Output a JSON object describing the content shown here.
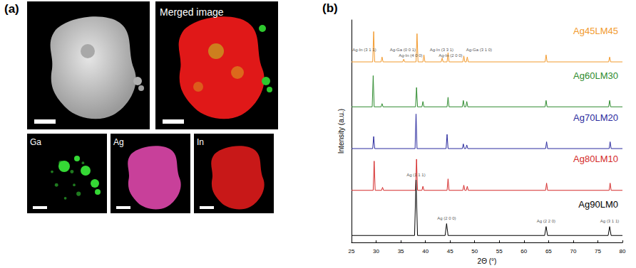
{
  "figure": {
    "panel_a": {
      "label": "(a)",
      "merged_title": "Merged image",
      "maps": [
        "Ga",
        "Ag",
        "In"
      ]
    },
    "panel_b": {
      "label": "(b)"
    }
  },
  "chart_data": {
    "type": "line",
    "x_label": "2Θ (°)",
    "y_label": "Intensity (a.u.)",
    "xlim": [
      25,
      80
    ],
    "xticks": [
      25,
      30,
      35,
      40,
      45,
      50,
      55,
      60,
      65,
      70,
      75,
      80
    ],
    "ylim": [
      0,
      105
    ],
    "tick_labels": "x",
    "grid": false,
    "series": [
      {
        "name": "Ag45LM45",
        "color": "#f29a2e",
        "x": [
          25,
          29.3,
          29.5,
          29.7,
          31.0,
          31.2,
          31.4,
          35.4,
          35.6,
          35.8,
          38.1,
          38.3,
          38.5,
          39.5,
          39.7,
          39.9,
          43.2,
          43.4,
          43.6,
          44.4,
          44.6,
          44.8,
          47.6,
          47.8,
          48.0,
          48.3,
          48.5,
          48.7,
          64.3,
          64.5,
          64.7,
          77.2,
          77.4,
          77.6,
          80
        ],
        "values": [
          85.2,
          85.2,
          99.5,
          85.2,
          85.2,
          87.5,
          85.2,
          85.2,
          86.5,
          85.2,
          85.2,
          98.5,
          85.2,
          85.2,
          88.5,
          85.2,
          85.2,
          87,
          85.2,
          85.2,
          89.5,
          85.2,
          85.2,
          88,
          85.2,
          85.2,
          87.5,
          85.2,
          85.2,
          88.5,
          85.2,
          85.2,
          87.5,
          85.2,
          85.2
        ]
      },
      {
        "name": "Ag60LM30",
        "color": "#2e8b2e",
        "x": [
          25,
          29.2,
          29.4,
          29.6,
          31.0,
          31.2,
          31.4,
          38.0,
          38.2,
          38.4,
          39.3,
          39.5,
          39.7,
          44.4,
          44.6,
          44.8,
          47.5,
          47.7,
          47.9,
          48.2,
          48.4,
          48.6,
          64.3,
          64.5,
          64.7,
          77.2,
          77.4,
          77.6,
          80
        ],
        "values": [
          64,
          64,
          78.7,
          64,
          64,
          65.5,
          64,
          64,
          73.1,
          64,
          64,
          66.5,
          64,
          64,
          68.5,
          64,
          64,
          67,
          64,
          64,
          66.5,
          64,
          64,
          67,
          64,
          64,
          67,
          64,
          64
        ]
      },
      {
        "name": "Ag70LM20",
        "color": "#2b2b9e",
        "x": [
          25,
          29.3,
          29.5,
          29.7,
          37.9,
          38.1,
          38.3,
          44.2,
          44.4,
          44.6,
          47.5,
          47.7,
          47.9,
          48.2,
          48.4,
          48.6,
          64.4,
          64.6,
          64.8,
          77.3,
          77.5,
          77.7,
          80
        ],
        "values": [
          44.3,
          44.3,
          50,
          44.3,
          44.3,
          60.6,
          44.3,
          44.3,
          51,
          44.3,
          44.3,
          46.5,
          44.3,
          44.3,
          46,
          44.3,
          44.3,
          47.5,
          44.3,
          44.3,
          47.5,
          44.3,
          44.3
        ]
      },
      {
        "name": "Ag80LM10",
        "color": "#d42a2a",
        "x": [
          25,
          29.4,
          29.6,
          29.8,
          31.1,
          31.3,
          31.5,
          38.0,
          38.2,
          38.4,
          39.3,
          39.5,
          39.7,
          44.4,
          44.6,
          44.8,
          47.6,
          47.8,
          48.0,
          48.3,
          48.5,
          48.7,
          64.4,
          64.6,
          64.8,
          77.3,
          77.5,
          77.7,
          80
        ],
        "values": [
          24.6,
          24.6,
          38.4,
          24.6,
          24.6,
          26,
          24.6,
          24.6,
          39.3,
          24.6,
          24.6,
          26.5,
          24.6,
          24.6,
          30,
          24.6,
          24.6,
          27,
          24.6,
          24.6,
          26.5,
          24.6,
          24.6,
          28,
          24.6,
          24.6,
          28,
          24.6,
          24.6
        ]
      },
      {
        "name": "Ag90LM0",
        "color": "#000000",
        "x": [
          25,
          37.8,
          38.1,
          38.4,
          44.0,
          44.3,
          44.6,
          64.2,
          64.5,
          64.8,
          77.1,
          77.4,
          77.7,
          80
        ],
        "values": [
          3.3,
          3.3,
          29.5,
          3.3,
          3.3,
          8.9,
          3.3,
          3.3,
          7.5,
          3.3,
          3.3,
          7.5,
          3.3,
          3.3
        ]
      }
    ],
    "annotations": [
      {
        "text": "Ag-In (3 1 1)",
        "x": 27.6,
        "y": 91
      },
      {
        "text": "Ag-Ga (0 0 1)",
        "x": 35.4,
        "y": 91
      },
      {
        "text": "Ag-In (4 0 0)",
        "x": 37.0,
        "y": 88.3
      },
      {
        "text": "Ag-In (3 3 1)",
        "x": 43.3,
        "y": 91
      },
      {
        "text": "Ag-In (2 0 0)",
        "x": 45.1,
        "y": 88.3
      },
      {
        "text": "Ag-Ga (3 1 0)",
        "x": 50.9,
        "y": 91
      },
      {
        "text": "Ag (1 1 1)",
        "x": 38.1,
        "y": 32
      },
      {
        "text": "Ag (2 0 0)",
        "x": 44.3,
        "y": 11.5
      },
      {
        "text": "Ag (2 2 0)",
        "x": 64.5,
        "y": 10
      },
      {
        "text": "Ag (3 1 1)",
        "x": 77.4,
        "y": 10
      }
    ]
  }
}
